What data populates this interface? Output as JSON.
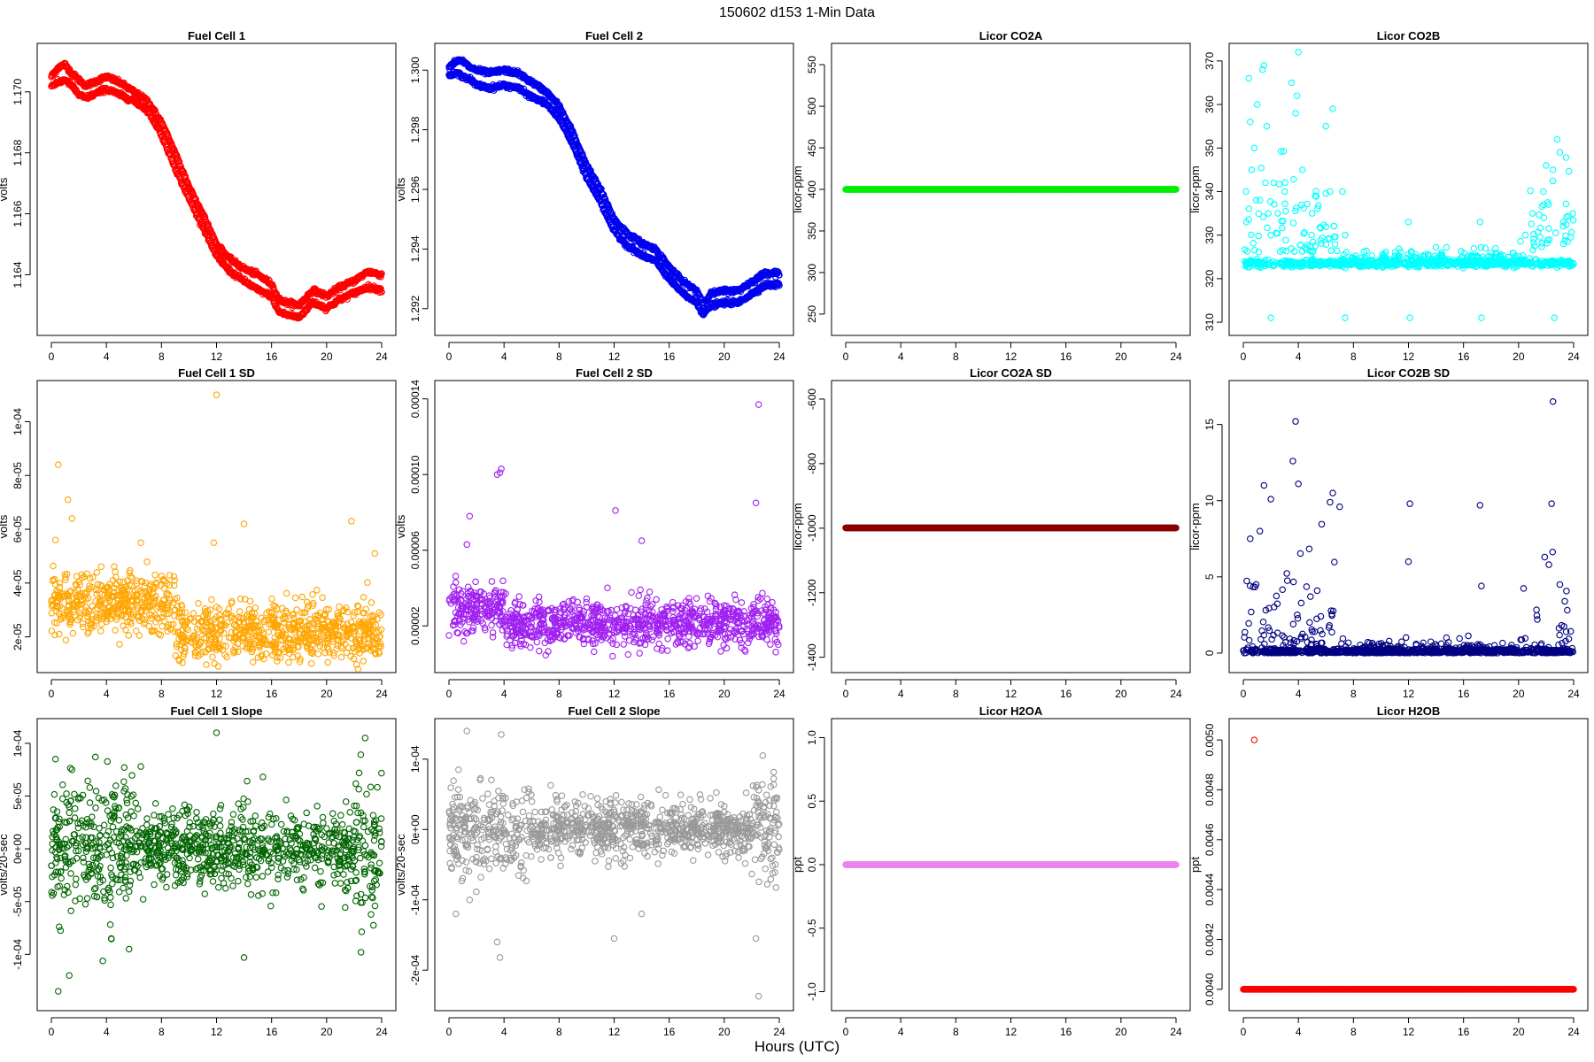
{
  "figure": {
    "title": "150602   d153   1-Min Data",
    "xlabel": "Hours (UTC)"
  },
  "chart_data": [
    {
      "type": "scatter",
      "title": "Fuel Cell 1",
      "ylabel": "volts",
      "color": "#ff0000",
      "xlim": [
        0,
        24
      ],
      "ylim": [
        1.1623,
        1.1713
      ],
      "xticks": [
        0,
        4,
        8,
        12,
        16,
        20,
        24
      ],
      "yticks": [
        1.164,
        1.166,
        1.168,
        1.17
      ],
      "ytick_labels": [
        "1.164",
        "1.166",
        "1.168",
        "1.170"
      ],
      "series": [
        {
          "name": "upper",
          "x": [
            0,
            0.5,
            1,
            1.5,
            2,
            2.5,
            3,
            3.5,
            4,
            4.5,
            5,
            6,
            7,
            8,
            9,
            10,
            11,
            12,
            13,
            14,
            15,
            16,
            16.5,
            17,
            18,
            19,
            20,
            21,
            22,
            23,
            24
          ],
          "y": [
            1.1705,
            1.1708,
            1.1709,
            1.1706,
            1.1704,
            1.1702,
            1.1703,
            1.1704,
            1.1705,
            1.1704,
            1.1703,
            1.17,
            1.1697,
            1.169,
            1.168,
            1.1669,
            1.166,
            1.165,
            1.1645,
            1.1642,
            1.164,
            1.1637,
            1.1632,
            1.1631,
            1.163,
            1.1635,
            1.1633,
            1.1636,
            1.1638,
            1.1641,
            1.164
          ]
        },
        {
          "name": "lower",
          "x": [
            0,
            0.5,
            1,
            1.5,
            2,
            2.5,
            3,
            3.5,
            4,
            4.5,
            5,
            6,
            7,
            8,
            9,
            10,
            11,
            12,
            13,
            14,
            15,
            16,
            16.5,
            17,
            18,
            19,
            20,
            21,
            22,
            23,
            24
          ],
          "y": [
            1.1702,
            1.1703,
            1.1704,
            1.1702,
            1.1699,
            1.1698,
            1.1699,
            1.17,
            1.1701,
            1.17,
            1.1699,
            1.1697,
            1.1694,
            1.1686,
            1.1675,
            1.1665,
            1.1656,
            1.1646,
            1.1641,
            1.1638,
            1.1635,
            1.1633,
            1.1628,
            1.1627,
            1.1626,
            1.1631,
            1.1629,
            1.1632,
            1.1634,
            1.1636,
            1.1635
          ]
        }
      ]
    },
    {
      "type": "scatter",
      "title": "Fuel Cell 2",
      "ylabel": "volts",
      "color": "#0000ee",
      "xlim": [
        0,
        24
      ],
      "ylim": [
        1.2914,
        1.3006
      ],
      "xticks": [
        0,
        4,
        8,
        12,
        16,
        20,
        24
      ],
      "yticks": [
        1.292,
        1.294,
        1.296,
        1.298,
        1.3
      ],
      "ytick_labels": [
        "1.292",
        "1.294",
        "1.296",
        "1.298",
        "1.300"
      ],
      "series": [
        {
          "name": "upper",
          "x": [
            0,
            0.5,
            1,
            1.5,
            2,
            3,
            4,
            5,
            6,
            7,
            8,
            9,
            10,
            11,
            12,
            13,
            14,
            15,
            16,
            17,
            18,
            18.5,
            19,
            20,
            21,
            22,
            23,
            24
          ],
          "y": [
            1.3001,
            1.3003,
            1.3003,
            1.3001,
            1.3,
            1.2999,
            1.3,
            1.2999,
            1.2996,
            1.2993,
            1.2988,
            1.2979,
            1.2968,
            1.296,
            1.295,
            1.2945,
            1.2942,
            1.294,
            1.2934,
            1.2929,
            1.2926,
            1.2922,
            1.2925,
            1.2926,
            1.2926,
            1.2929,
            1.2932,
            1.2932
          ]
        },
        {
          "name": "lower",
          "x": [
            0,
            0.5,
            1,
            1.5,
            2,
            3,
            4,
            5,
            6,
            7,
            8,
            9,
            10,
            11,
            12,
            13,
            14,
            15,
            16,
            17,
            18,
            18.5,
            19,
            20,
            21,
            22,
            23,
            24
          ],
          "y": [
            1.2998,
            1.2999,
            1.2998,
            1.2997,
            1.2995,
            1.2994,
            1.2995,
            1.2994,
            1.2991,
            1.2989,
            1.2984,
            1.2975,
            1.2964,
            1.2956,
            1.2946,
            1.2941,
            1.2938,
            1.2936,
            1.293,
            1.2925,
            1.2922,
            1.2918,
            1.2921,
            1.2922,
            1.2922,
            1.2925,
            1.2928,
            1.2928
          ]
        }
      ]
    },
    {
      "type": "scatter",
      "title": "Licor CO2A",
      "ylabel": "licor-ppm",
      "color": "#00ee00",
      "xlim": [
        0,
        24
      ],
      "ylim": [
        235,
        565
      ],
      "xticks": [
        0,
        4,
        8,
        12,
        16,
        20,
        24
      ],
      "yticks": [
        250,
        300,
        350,
        400,
        450,
        500,
        550
      ],
      "ytick_labels": [
        "250",
        "300",
        "350",
        "400",
        "450",
        "500",
        "550"
      ],
      "series": [
        {
          "name": "const",
          "constant": 400
        }
      ]
    },
    {
      "type": "scatter",
      "title": "Licor CO2B",
      "ylabel": "licor-ppm",
      "color": "#00ffff",
      "xlim": [
        0,
        24
      ],
      "ylim": [
        309,
        372
      ],
      "xticks": [
        0,
        4,
        8,
        12,
        16,
        20,
        24
      ],
      "yticks": [
        310,
        320,
        330,
        340,
        350,
        360,
        370
      ],
      "ytick_labels": [
        "310",
        "320",
        "330",
        "340",
        "350",
        "360",
        "370"
      ],
      "series": [
        {
          "name": "data",
          "x": [
            0.2,
            0.4,
            0.5,
            0.6,
            0.8,
            1.0,
            1.2,
            1.5,
            1.7,
            2.0,
            2.2,
            2.5,
            3.0,
            3.5,
            3.8,
            4.0,
            4.3,
            5.0,
            6.0,
            6.3,
            6.5,
            7.2,
            7.4,
            12.0,
            12.2,
            17.2,
            20.5,
            21.0,
            21.8,
            22.0,
            22.5,
            22.8,
            23.0,
            3.9,
            1.4,
            2.0,
            7.4,
            12.1,
            17.3,
            22.6
          ],
          "y": [
            340,
            366,
            356,
            345,
            350,
            360,
            338,
            369,
            355,
            330,
            342,
            335,
            340,
            365,
            358,
            372,
            345,
            335,
            355,
            340,
            359,
            340,
            330,
            333,
            326,
            333,
            330,
            335,
            340,
            346,
            345,
            352,
            349,
            362,
            368,
            311,
            311,
            311,
            311,
            311
          ]
        }
      ]
    },
    {
      "type": "scatter",
      "title": "Fuel Cell 1 SD",
      "ylabel": "volts",
      "color": "#ffa500",
      "xlim": [
        0,
        24
      ],
      "ylim": [
        1e-05,
        0.000112
      ],
      "xticks": [
        0,
        4,
        8,
        12,
        16,
        20,
        24
      ],
      "yticks": [
        2e-05,
        4e-05,
        6e-05,
        8e-05,
        0.0001
      ],
      "ytick_labels": [
        "2e-05",
        "4e-05",
        "6e-05",
        "8e-05",
        "1e-04"
      ],
      "series": [
        {
          "name": "outliers",
          "x": [
            0.5,
            1.2,
            1.5,
            12.0,
            14.0,
            11.8,
            21.8,
            23.5,
            0.3,
            6.5
          ],
          "y": [
            8.4e-05,
            7.1e-05,
            6.4e-05,
            0.00011,
            6.2e-05,
            5.5e-05,
            6.3e-05,
            5.1e-05,
            5.6e-05,
            5.5e-05
          ]
        }
      ]
    },
    {
      "type": "scatter",
      "title": "Fuel Cell 2 SD",
      "ylabel": "volts",
      "color": "#a020f0",
      "xlim": [
        0,
        24
      ],
      "ylim": [
        0.0,
        0.000145
      ],
      "xticks": [
        0,
        4,
        8,
        12,
        16,
        20,
        24
      ],
      "yticks": [
        2e-05,
        6e-05,
        0.0001,
        0.00014
      ],
      "ytick_labels": [
        "0.00002",
        "0.00006",
        "0.00010",
        "0.00014"
      ],
      "series": [
        {
          "name": "outliers",
          "x": [
            3.5,
            3.7,
            3.8,
            22.5,
            22.3,
            12.1,
            1.5,
            14.0,
            1.3
          ],
          "y": [
            0.0001,
            0.000101,
            0.000103,
            0.000137,
            8.5e-05,
            8.1e-05,
            7.8e-05,
            6.5e-05,
            6.3e-05
          ]
        }
      ]
    },
    {
      "type": "scatter",
      "title": "Licor CO2A SD",
      "ylabel": "licor-ppm",
      "color": "#8b0000",
      "xlim": [
        0,
        24
      ],
      "ylim": [
        -1420,
        -570
      ],
      "xticks": [
        0,
        4,
        8,
        12,
        16,
        20,
        24
      ],
      "yticks": [
        -1400,
        -1200,
        -1000,
        -800,
        -600
      ],
      "ytick_labels": [
        "-1400",
        "-1200",
        "-1000",
        "-800",
        "-600"
      ],
      "series": [
        {
          "name": "const",
          "constant": -999
        }
      ]
    },
    {
      "type": "scatter",
      "title": "Licor CO2B SD",
      "ylabel": "licor-ppm",
      "color": "#000080",
      "xlim": [
        0,
        24
      ],
      "ylim": [
        -0.7,
        17.3
      ],
      "xticks": [
        0,
        4,
        8,
        12,
        16,
        20,
        24
      ],
      "yticks": [
        0,
        5,
        10,
        15
      ],
      "ytick_labels": [
        "0",
        "5",
        "10",
        "15"
      ],
      "series": [
        {
          "name": "outliers",
          "x": [
            22.5,
            3.8,
            3.6,
            4.0,
            1.5,
            2.0,
            6.5,
            7.0,
            12.1,
            17.2,
            22.4,
            12.0,
            0.5,
            1.2,
            6.3,
            17.3,
            21.9,
            22.2,
            23.0
          ],
          "y": [
            16.5,
            15.2,
            12.6,
            11.1,
            11.0,
            10.1,
            10.5,
            9.6,
            9.8,
            9.7,
            9.8,
            6.0,
            7.5,
            8.0,
            9.9,
            4.4,
            6.3,
            5.8,
            4.5
          ]
        }
      ]
    },
    {
      "type": "scatter",
      "title": "Fuel Cell 1 Slope",
      "ylabel": "volts/20-sec",
      "color": "#006400",
      "xlim": [
        0,
        24
      ],
      "ylim": [
        -0.000145,
        0.000115
      ],
      "xticks": [
        0,
        4,
        8,
        12,
        16,
        20,
        24
      ],
      "yticks": [
        -0.0001,
        -5e-05,
        0,
        5e-05,
        0.0001
      ],
      "ytick_labels": [
        "-1e-04",
        "-5e-05",
        "0e+00",
        "5e-05",
        "1e-04"
      ],
      "series": [
        {
          "name": "outliers",
          "x": [
            12.0,
            22.8,
            0.5,
            1.3,
            0.3,
            14.0,
            22.5,
            1.5,
            3.2,
            6.5
          ],
          "y": [
            0.00011,
            0.000105,
            -0.000135,
            -0.00012,
            8.5e-05,
            -0.000103,
            -9.8e-05,
            7.5e-05,
            8.7e-05,
            7.8e-05
          ]
        }
      ]
    },
    {
      "type": "scatter",
      "title": "Fuel Cell 2 Slope",
      "ylabel": "volts/20-sec",
      "color": "#999999",
      "xlim": [
        0,
        24
      ],
      "ylim": [
        -0.000245,
        0.000145
      ],
      "xticks": [
        0,
        4,
        8,
        12,
        16,
        20,
        24
      ],
      "yticks": [
        -0.0002,
        -0.0001,
        0,
        0.0001
      ],
      "ytick_labels": [
        "-2e-04",
        "-1e-04",
        "0e+00",
        "1e-04"
      ],
      "series": [
        {
          "name": "outliers",
          "x": [
            1.3,
            3.8,
            3.7,
            3.5,
            22.5,
            12.0,
            14.0,
            22.3,
            1.5,
            0.5,
            22.8
          ],
          "y": [
            0.00014,
            0.000135,
            -0.000182,
            -0.00016,
            -0.000237,
            -0.000155,
            -0.00012,
            -0.000155,
            -0.0001,
            -0.00012,
            0.000105
          ]
        }
      ]
    },
    {
      "type": "scatter",
      "title": "Licor H2OA",
      "ylabel": "ppt",
      "color": "#ee82ee",
      "xlim": [
        0,
        24
      ],
      "ylim": [
        -1.08,
        1.08
      ],
      "xticks": [
        0,
        4,
        8,
        12,
        16,
        20,
        24
      ],
      "yticks": [
        -1.0,
        -0.5,
        0.0,
        0.5,
        1.0
      ],
      "ytick_labels": [
        "-1.0",
        "-0.5",
        "0.0",
        "0.5",
        "1.0"
      ],
      "series": [
        {
          "name": "const",
          "constant": 0
        }
      ]
    },
    {
      "type": "scatter",
      "title": "Licor H2OB",
      "ylabel": "ppt",
      "color": "#ff0000",
      "xlim": [
        0,
        24
      ],
      "ylim": [
        0.00395,
        0.00505
      ],
      "xticks": [
        0,
        4,
        8,
        12,
        16,
        20,
        24
      ],
      "yticks": [
        0.004,
        0.0042,
        0.0044,
        0.0046,
        0.0048,
        0.005
      ],
      "ytick_labels": [
        "0.0040",
        "0.0042",
        "0.0044",
        "0.0046",
        "0.0048",
        "0.0050"
      ],
      "series": [
        {
          "name": "const",
          "constant": 0.004
        },
        {
          "name": "outlier",
          "x": [
            0.8
          ],
          "y": [
            0.005
          ]
        }
      ]
    }
  ]
}
